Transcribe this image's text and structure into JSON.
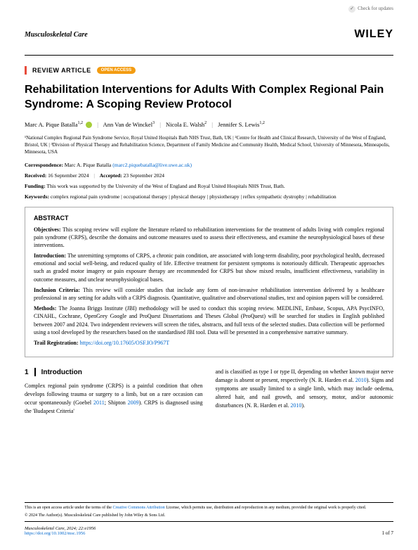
{
  "checkUpdates": "Check for updates",
  "journal": "Musculoskeletal Care",
  "publisher": "WILEY",
  "articleType": "REVIEW ARTICLE",
  "openAccess": "OPEN ACCESS",
  "title": "Rehabilitation Interventions for Adults With Complex Regional Pain Syndrome: A Scoping Review Protocol",
  "authors": {
    "a1": {
      "name": "Marc A. Pique Batalla",
      "sup": "1,2"
    },
    "a2": {
      "name": "Ann Van de Winckel",
      "sup": "3"
    },
    "a3": {
      "name": "Nicola E. Walsh",
      "sup": "2"
    },
    "a4": {
      "name": "Jennifer S. Lewis",
      "sup": "1,2"
    }
  },
  "affiliations": "¹National Complex Regional Pain Syndrome Service, Royal United Hospitals Bath NHS Trust, Bath, UK | ²Centre for Health and Clinical Research, University of the West of England, Bristol, UK | ³Division of Physical Therapy and Rehabilitation Science, Department of Family Medicine and Community Health, Medical School, University of Minnesota, Minneapolis, Minnesota, USA",
  "correspondence": {
    "label": "Correspondence:",
    "text": "Marc A. Pique Batalla",
    "email": "(marc2.piquebatalla@live.uwe.ac.uk)"
  },
  "dates": {
    "receivedLabel": "Received:",
    "received": "16 September 2024",
    "acceptedLabel": "Accepted:",
    "accepted": "23 September 2024"
  },
  "funding": {
    "label": "Funding:",
    "text": "This work was supported by the University of the West of England and Royal United Hospitals NHS Trust, Bath."
  },
  "keywords": {
    "label": "Keywords:",
    "items": "complex regional pain syndrome | occupational therapy | physical therapy | physiotherapy | reflex sympathetic dystrophy | rehabilitation"
  },
  "abstract": {
    "heading": "ABSTRACT",
    "objectives": {
      "label": "Objectives:",
      "text": "This scoping review will explore the literature related to rehabilitation interventions for the treatment of adults living with complex regional pain syndrome (CRPS), describe the domains and outcome measures used to assess their effectiveness, and examine the neurophysiological bases of these interventions."
    },
    "introduction": {
      "label": "Introduction:",
      "text": "The unremitting symptoms of CRPS, a chronic pain condition, are associated with long-term disability, poor psychological health, decreased emotional and social well-being, and reduced quality of life. Effective treatment for persistent symptoms is notoriously difficult. Therapeutic approaches such as graded motor imagery or pain exposure therapy are recommended for CRPS but show mixed results, insufficient effectiveness, variability in outcome measures, and unclear neurophysiological bases."
    },
    "inclusion": {
      "label": "Inclusion Criteria:",
      "text": "This review will consider studies that include any form of non-invasive rehabilitation intervention delivered by a healthcare professional in any setting for adults with a CRPS diagnosis. Quantitative, qualitative and observational studies, text and opinion papers will be considered."
    },
    "methods": {
      "label": "Methods:",
      "text": "The Joanna Briggs Institute (JBI) methodology will be used to conduct this scoping review. MEDLINE, Embase, Scopus, APA PsycINFO, CINAHL, Cochrane, OpenGrey Google and ProQuest Dissertations and Theses Global (ProQuest) will be searched for studies in English published between 2007 and 2024. Two independent reviewers will screen the titles, abstracts, and full texts of the selected studies. Data collection will be performed using a tool developed by the researchers based on the standardised JBI tool. Data will be presented in a comprehensive narrative summary."
    },
    "registration": {
      "label": "Trail Registration:",
      "link": "https://doi.org/10.17605/OSF.IO/P967T"
    }
  },
  "introSection": {
    "number": "1",
    "heading": "Introduction",
    "col1": "Complex regional pain syndrome (CRPS) is a painful condition that often develops following trauma or surgery to a limb, but on a rare occasion can occur spontaneously (Goebel 2011; Shipton 2009). CRPS is diagnosed using the 'Budapest Criteria'",
    "col2": "and is classified as type I or type II, depending on whether known major nerve damage is absent or present, respectively (N. R. Harden et al. 2010). Signs and symptoms are usually limited to a single limb, which may include oedema, altered hair, and nail growth, and sensory, motor, and/or autonomic disturbances (N. R. Harden et al. 2010)."
  },
  "footer": {
    "license": "This is an open access article under the terms of the Creative Commons Attribution License, which permits use, distribution and reproduction in any medium, provided the original work is properly cited.",
    "copyright": "© 2024 The Author(s). Musculoskeletal Care published by John Wiley & Sons Ltd.",
    "citation": "Musculoskeletal Care, 2024; 22:e1956",
    "doi": "https://doi.org/10.1002/msc.1956",
    "pageNum": "1 of 7"
  }
}
